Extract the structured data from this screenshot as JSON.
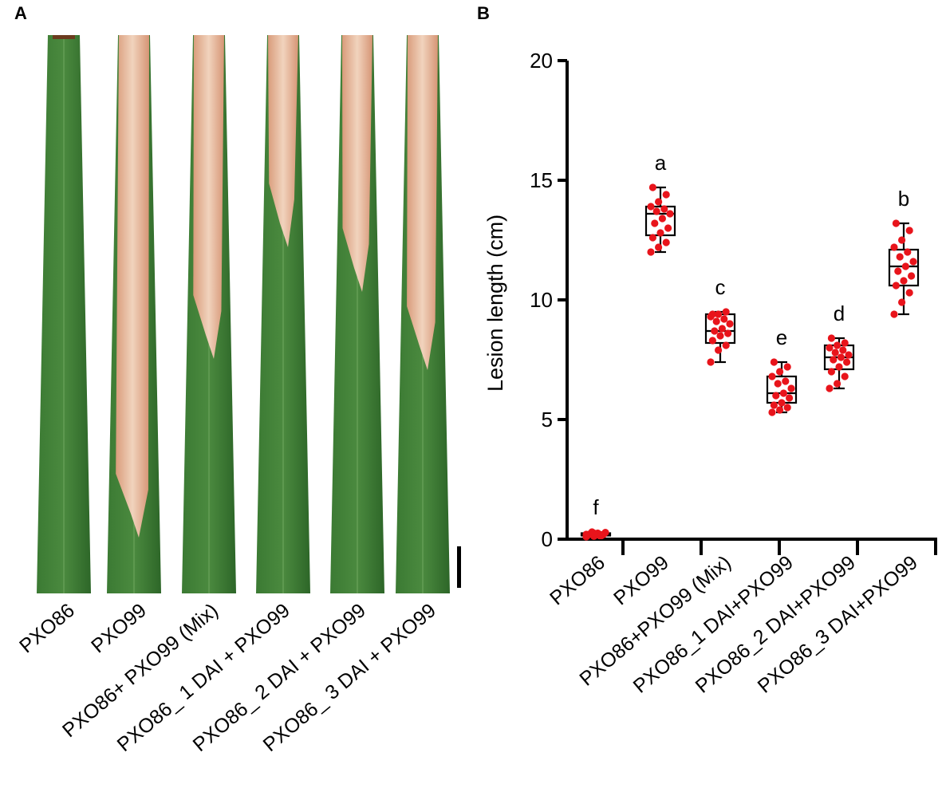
{
  "panels": {
    "a_label": "A",
    "b_label": "B"
  },
  "leaves": [
    {
      "label": "PXO86",
      "lesion_fraction": 0.0
    },
    {
      "label": "PXO99",
      "lesion_fraction": 0.9
    },
    {
      "label": "PXO86+ PXO99 (Mix)",
      "lesion_fraction": 0.58
    },
    {
      "label": "PXO86_ 1 DAI + PXO99",
      "lesion_fraction": 0.38
    },
    {
      "label": "PXO86_ 2 DAI + PXO99",
      "lesion_fraction": 0.46
    },
    {
      "label": "PXO86_ 3 DAI + PXO99",
      "lesion_fraction": 0.6
    }
  ],
  "colors": {
    "leaf_green": "#2f6b2a",
    "leaf_green_light": "#4a8a3c",
    "lesion": "#e6b08f",
    "lesion_light": "#f1d3bd",
    "dot": "#e8141b",
    "axis": "#000000"
  },
  "chart_data": {
    "type": "box",
    "ylabel": "Lesion length (cm)",
    "xlabel": "",
    "ylim": [
      0,
      20
    ],
    "yticks": [
      "0",
      "5",
      "10",
      "15",
      "20"
    ],
    "categories": [
      "PXO86",
      "PXO99",
      "PXO86+PXO99 (Mix)",
      "PXO86_1 DAI+PXO99",
      "PXO86_2 DAI+PXO99",
      "PXO86_3 DAI+PXO99"
    ],
    "significance": [
      "f",
      "a",
      "c",
      "e",
      "d",
      "b"
    ],
    "boxes": [
      {
        "min": 0.1,
        "q1": 0.15,
        "median": 0.2,
        "q3": 0.25,
        "max": 0.3,
        "points": [
          0.1,
          0.12,
          0.15,
          0.18,
          0.2,
          0.2,
          0.22,
          0.25,
          0.28,
          0.3,
          0.15,
          0.2,
          0.25,
          0.18
        ]
      },
      {
        "min": 12.0,
        "q1": 12.7,
        "median": 13.6,
        "q3": 13.9,
        "max": 14.7,
        "points": [
          12.0,
          12.2,
          12.4,
          12.6,
          12.8,
          13.0,
          13.2,
          13.4,
          13.6,
          13.7,
          13.8,
          13.9,
          14.1,
          14.4,
          14.7
        ]
      },
      {
        "min": 7.4,
        "q1": 8.2,
        "median": 8.7,
        "q3": 9.4,
        "max": 9.5,
        "points": [
          7.4,
          7.9,
          8.1,
          8.3,
          8.5,
          8.6,
          8.7,
          8.8,
          9.0,
          9.1,
          9.2,
          9.3,
          9.4,
          9.5,
          9.4
        ]
      },
      {
        "min": 5.3,
        "q1": 5.7,
        "median": 6.1,
        "q3": 6.8,
        "max": 7.4,
        "points": [
          5.3,
          5.4,
          5.5,
          5.6,
          5.7,
          5.9,
          6.0,
          6.1,
          6.3,
          6.5,
          6.6,
          6.8,
          7.0,
          7.2,
          7.4
        ]
      },
      {
        "min": 6.3,
        "q1": 7.1,
        "median": 7.6,
        "q3": 8.1,
        "max": 8.4,
        "points": [
          6.3,
          6.5,
          6.8,
          7.0,
          7.2,
          7.4,
          7.5,
          7.6,
          7.7,
          7.8,
          7.9,
          8.0,
          8.1,
          8.2,
          8.4
        ]
      },
      {
        "min": 9.4,
        "q1": 10.6,
        "median": 11.4,
        "q3": 12.1,
        "max": 13.2,
        "points": [
          9.4,
          9.9,
          10.3,
          10.6,
          10.8,
          11.0,
          11.2,
          11.4,
          11.6,
          11.8,
          12.0,
          12.2,
          12.5,
          12.9,
          13.2
        ]
      }
    ]
  }
}
